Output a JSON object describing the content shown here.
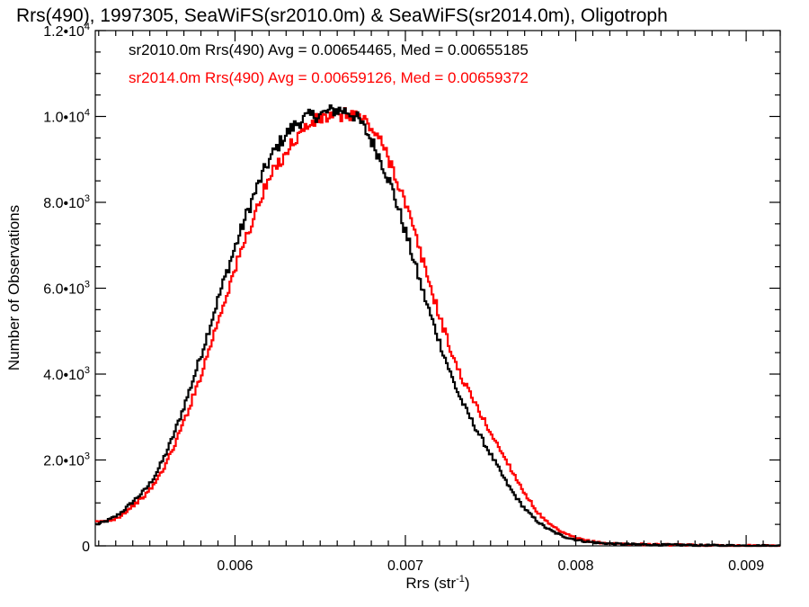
{
  "chart_data": {
    "type": "line",
    "title": "Rrs(490), 1997305, SeaWiFS(sr2010.0m) & SeaWiFS(sr2014.0m), Oligotroph",
    "xlabel": "Rrs (str",
    "xlabel_sup": "-1",
    "xlabel_close": ")",
    "ylabel": "Number of Observations",
    "xlim": [
      0.00518,
      0.0092
    ],
    "ylim": [
      0,
      12000
    ],
    "x_ticks": [
      {
        "value": 0.006,
        "label": "0.006"
      },
      {
        "value": 0.007,
        "label": "0.007"
      },
      {
        "value": 0.008,
        "label": "0.008"
      },
      {
        "value": 0.009,
        "label": "0.009"
      }
    ],
    "y_ticks": [
      {
        "value": 0,
        "mant": "0",
        "exp": ""
      },
      {
        "value": 2000,
        "mant": "2.0•10",
        "exp": "3"
      },
      {
        "value": 4000,
        "mant": "4.0•10",
        "exp": "3"
      },
      {
        "value": 6000,
        "mant": "6.0•10",
        "exp": "3"
      },
      {
        "value": 8000,
        "mant": "8.0•10",
        "exp": "3"
      },
      {
        "value": 10000,
        "mant": "1.0•10",
        "exp": "4"
      },
      {
        "value": 12000,
        "mant": "1.2•10",
        "exp": "4"
      }
    ],
    "legend": [
      {
        "text": "sr2010.0m Rrs(490) Avg = 0.00654465, Med = 0.00655185",
        "color": "#000000"
      },
      {
        "text": "sr2014.0m Rrs(490) Avg = 0.00659126, Med = 0.00659372",
        "color": "#ff0000"
      }
    ],
    "legend_position": "top-left",
    "series": [
      {
        "name": "sr2010.0m",
        "color": "#000000",
        "line_style": "step",
        "points": [
          [
            0.00518,
            500
          ],
          [
            0.0053,
            700
          ],
          [
            0.0054,
            1050
          ],
          [
            0.0055,
            1480
          ],
          [
            0.0056,
            2250
          ],
          [
            0.0057,
            3300
          ],
          [
            0.0058,
            4500
          ],
          [
            0.0059,
            5800
          ],
          [
            0.006,
            7000
          ],
          [
            0.0061,
            8100
          ],
          [
            0.0062,
            9000
          ],
          [
            0.0063,
            9600
          ],
          [
            0.0064,
            9950
          ],
          [
            0.0065,
            10050
          ],
          [
            0.0066,
            10150
          ],
          [
            0.0067,
            10000
          ],
          [
            0.0068,
            9400
          ],
          [
            0.0069,
            8500
          ],
          [
            0.007,
            7250
          ],
          [
            0.0071,
            5900
          ],
          [
            0.0072,
            4700
          ],
          [
            0.0073,
            3600
          ],
          [
            0.0074,
            2800
          ],
          [
            0.0075,
            2100
          ],
          [
            0.0076,
            1400
          ],
          [
            0.0077,
            850
          ],
          [
            0.0078,
            480
          ],
          [
            0.0079,
            260
          ],
          [
            0.008,
            140
          ],
          [
            0.0081,
            80
          ],
          [
            0.0082,
            50
          ],
          [
            0.0084,
            30
          ],
          [
            0.0086,
            20
          ],
          [
            0.0088,
            10
          ],
          [
            0.009,
            5
          ],
          [
            0.0092,
            0
          ]
        ]
      },
      {
        "name": "sr2014.0m",
        "color": "#ff0000",
        "line_style": "step",
        "points": [
          [
            0.00518,
            550
          ],
          [
            0.0053,
            650
          ],
          [
            0.0054,
            950
          ],
          [
            0.0055,
            1330
          ],
          [
            0.0056,
            2000
          ],
          [
            0.0057,
            2950
          ],
          [
            0.0058,
            4050
          ],
          [
            0.0059,
            5300
          ],
          [
            0.006,
            6500
          ],
          [
            0.0061,
            7600
          ],
          [
            0.0062,
            8550
          ],
          [
            0.0063,
            9200
          ],
          [
            0.0064,
            9700
          ],
          [
            0.0065,
            9950
          ],
          [
            0.0066,
            10000
          ],
          [
            0.0067,
            10050
          ],
          [
            0.0068,
            9700
          ],
          [
            0.0069,
            9000
          ],
          [
            0.007,
            7900
          ],
          [
            0.0071,
            6600
          ],
          [
            0.0072,
            5300
          ],
          [
            0.0073,
            4150
          ],
          [
            0.0074,
            3350
          ],
          [
            0.0075,
            2600
          ],
          [
            0.0076,
            1900
          ],
          [
            0.0077,
            1200
          ],
          [
            0.0078,
            650
          ],
          [
            0.0079,
            350
          ],
          [
            0.008,
            180
          ],
          [
            0.0081,
            95
          ],
          [
            0.0082,
            55
          ],
          [
            0.0084,
            35
          ],
          [
            0.0086,
            22
          ],
          [
            0.0088,
            12
          ],
          [
            0.009,
            6
          ],
          [
            0.0092,
            0
          ]
        ]
      }
    ]
  }
}
